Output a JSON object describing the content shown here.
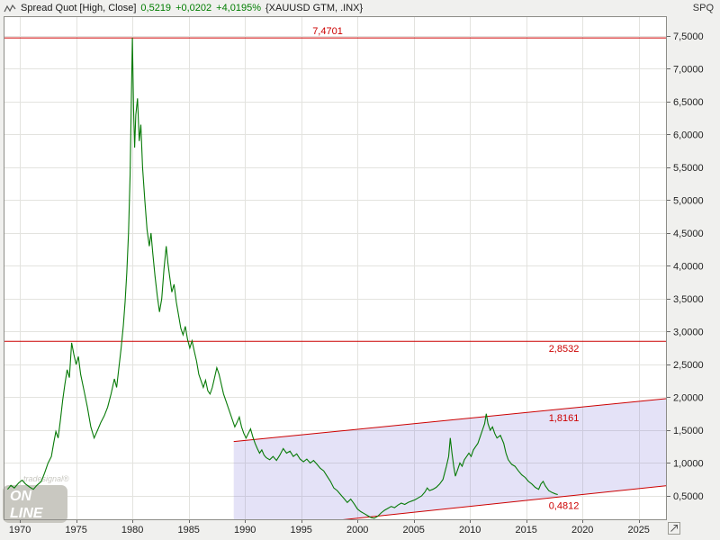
{
  "topbar": {
    "title": "Spread Quot [High, Close]",
    "value": "0,5219",
    "change_abs": "+0,0202",
    "change_pct": "+4,0195%",
    "symbol": "{XAUUSD GTM, .INX}",
    "axis_code": "SPQ"
  },
  "watermark": {
    "brand": "tradesignal®",
    "line1": "ON",
    "line2": "LINE"
  },
  "colors": {
    "series": "#077a07",
    "red": "#cc0000",
    "channel_fill": "rgba(122,110,215,0.20)",
    "grid": "#e3e3df",
    "frame": "#8d8d88",
    "plot_bg": "#ffffff",
    "bg": "#f0f0ee",
    "watermark": "#c9c8c1",
    "axis_text": "#222222",
    "change_text": "#007d00"
  },
  "chart_data": {
    "type": "line",
    "title": "Spread Quot [High, Close] {XAUUSD GTM, .INX}",
    "x_range": [
      1968.55,
      2027.5
    ],
    "y_range": [
      0.13,
      7.8
    ],
    "x_ticks": [
      1970,
      1975,
      1980,
      1985,
      1990,
      1995,
      2000,
      2005,
      2010,
      2015,
      2020,
      2025
    ],
    "x_tick_labels": [
      "1970",
      "1975",
      "1980",
      "1985",
      "1990",
      "1995",
      "2000",
      "2005",
      "2010",
      "2015",
      "2020",
      "2025"
    ],
    "y_ticks": [
      0.5,
      1.0,
      1.5,
      2.0,
      2.5,
      3.0,
      3.5,
      4.0,
      4.5,
      5.0,
      5.5,
      6.0,
      6.5,
      7.0,
      7.5
    ],
    "y_tick_labels": [
      "0,5000",
      "1,0000",
      "1,5000",
      "2,0000",
      "2,5000",
      "3,0000",
      "3,5000",
      "4,0000",
      "4,5000",
      "5,0000",
      "5,5000",
      "6,0000",
      "6,5000",
      "7,0000",
      "7,5000"
    ],
    "grid": true,
    "hlines": [
      {
        "value": 7.4701,
        "label": "7,4701",
        "label_year": 1996.0,
        "label_side": "above"
      },
      {
        "value": 2.8532,
        "label": "2,8532",
        "label_year": 2017.0,
        "label_side": "below"
      }
    ],
    "trendlines": [
      {
        "name": "upper",
        "value_at": 1.8161,
        "at_year": 2017.8,
        "slope_per_year": 0.017,
        "from_year": 1989,
        "to_year": 2027.5,
        "label": "1,8161",
        "label_year": 2017.0,
        "label_side": "below"
      },
      {
        "name": "lower",
        "value_at": 0.4812,
        "at_year": 2017.8,
        "slope_per_year": 0.018,
        "from_year": 1989,
        "to_year": 2027.5,
        "label": "0,4812",
        "label_year": 2017.0,
        "label_side": "below"
      }
    ],
    "channel": {
      "from_year": 1989,
      "to_year": 2027.5
    },
    "series": {
      "name": "Spread Quot",
      "last_value": 0.5219,
      "points": [
        [
          1968.9,
          0.6
        ],
        [
          1969.2,
          0.66
        ],
        [
          1969.5,
          0.62
        ],
        [
          1969.9,
          0.7
        ],
        [
          1970.2,
          0.74
        ],
        [
          1970.5,
          0.68
        ],
        [
          1970.9,
          0.63
        ],
        [
          1971.2,
          0.6
        ],
        [
          1971.5,
          0.66
        ],
        [
          1971.9,
          0.72
        ],
        [
          1972.2,
          0.85
        ],
        [
          1972.5,
          1.0
        ],
        [
          1972.8,
          1.1
        ],
        [
          1973.0,
          1.3
        ],
        [
          1973.2,
          1.48
        ],
        [
          1973.4,
          1.38
        ],
        [
          1973.6,
          1.65
        ],
        [
          1973.8,
          1.95
        ],
        [
          1974.0,
          2.2
        ],
        [
          1974.2,
          2.42
        ],
        [
          1974.4,
          2.3
        ],
        [
          1974.6,
          2.83
        ],
        [
          1974.8,
          2.65
        ],
        [
          1975.0,
          2.5
        ],
        [
          1975.2,
          2.62
        ],
        [
          1975.4,
          2.35
        ],
        [
          1975.7,
          2.1
        ],
        [
          1976.0,
          1.85
        ],
        [
          1976.3,
          1.55
        ],
        [
          1976.6,
          1.38
        ],
        [
          1976.9,
          1.5
        ],
        [
          1977.2,
          1.62
        ],
        [
          1977.5,
          1.72
        ],
        [
          1977.8,
          1.85
        ],
        [
          1978.1,
          2.05
        ],
        [
          1978.4,
          2.28
        ],
        [
          1978.6,
          2.15
        ],
        [
          1978.8,
          2.45
        ],
        [
          1979.0,
          2.75
        ],
        [
          1979.2,
          3.1
        ],
        [
          1979.35,
          3.45
        ],
        [
          1979.5,
          3.9
        ],
        [
          1979.65,
          4.5
        ],
        [
          1979.8,
          5.4
        ],
        [
          1979.9,
          6.5
        ],
        [
          1980.0,
          7.47
        ],
        [
          1980.1,
          6.4
        ],
        [
          1980.2,
          5.8
        ],
        [
          1980.3,
          6.3
        ],
        [
          1980.45,
          6.55
        ],
        [
          1980.6,
          5.9
        ],
        [
          1980.75,
          6.15
        ],
        [
          1980.9,
          5.5
        ],
        [
          1981.1,
          5.0
        ],
        [
          1981.3,
          4.55
        ],
        [
          1981.5,
          4.3
        ],
        [
          1981.65,
          4.5
        ],
        [
          1981.8,
          4.2
        ],
        [
          1982.0,
          3.85
        ],
        [
          1982.2,
          3.55
        ],
        [
          1982.4,
          3.3
        ],
        [
          1982.6,
          3.5
        ],
        [
          1982.8,
          3.95
        ],
        [
          1983.0,
          4.3
        ],
        [
          1983.15,
          4.05
        ],
        [
          1983.3,
          3.85
        ],
        [
          1983.5,
          3.6
        ],
        [
          1983.7,
          3.72
        ],
        [
          1983.9,
          3.45
        ],
        [
          1984.1,
          3.25
        ],
        [
          1984.3,
          3.05
        ],
        [
          1984.5,
          2.95
        ],
        [
          1984.7,
          3.08
        ],
        [
          1984.9,
          2.88
        ],
        [
          1985.1,
          2.75
        ],
        [
          1985.3,
          2.86
        ],
        [
          1985.5,
          2.7
        ],
        [
          1985.7,
          2.55
        ],
        [
          1985.9,
          2.35
        ],
        [
          1986.1,
          2.25
        ],
        [
          1986.3,
          2.15
        ],
        [
          1986.5,
          2.26
        ],
        [
          1986.7,
          2.1
        ],
        [
          1986.9,
          2.05
        ],
        [
          1987.1,
          2.15
        ],
        [
          1987.3,
          2.3
        ],
        [
          1987.5,
          2.45
        ],
        [
          1987.7,
          2.35
        ],
        [
          1987.9,
          2.2
        ],
        [
          1988.1,
          2.05
        ],
        [
          1988.3,
          1.95
        ],
        [
          1988.5,
          1.85
        ],
        [
          1988.7,
          1.75
        ],
        [
          1988.9,
          1.65
        ],
        [
          1989.1,
          1.55
        ],
        [
          1989.3,
          1.62
        ],
        [
          1989.5,
          1.7
        ],
        [
          1989.7,
          1.55
        ],
        [
          1989.9,
          1.45
        ],
        [
          1990.1,
          1.38
        ],
        [
          1990.3,
          1.45
        ],
        [
          1990.5,
          1.52
        ],
        [
          1990.7,
          1.4
        ],
        [
          1990.9,
          1.3
        ],
        [
          1991.1,
          1.22
        ],
        [
          1991.3,
          1.15
        ],
        [
          1991.5,
          1.2
        ],
        [
          1991.7,
          1.12
        ],
        [
          1991.9,
          1.08
        ],
        [
          1992.2,
          1.05
        ],
        [
          1992.5,
          1.1
        ],
        [
          1992.8,
          1.04
        ],
        [
          1993.1,
          1.12
        ],
        [
          1993.4,
          1.22
        ],
        [
          1993.7,
          1.15
        ],
        [
          1994.0,
          1.18
        ],
        [
          1994.3,
          1.1
        ],
        [
          1994.6,
          1.14
        ],
        [
          1994.9,
          1.06
        ],
        [
          1995.2,
          1.02
        ],
        [
          1995.5,
          1.06
        ],
        [
          1995.8,
          1.0
        ],
        [
          1996.1,
          1.04
        ],
        [
          1996.4,
          0.98
        ],
        [
          1996.7,
          0.92
        ],
        [
          1997.0,
          0.88
        ],
        [
          1997.3,
          0.8
        ],
        [
          1997.6,
          0.72
        ],
        [
          1997.9,
          0.62
        ],
        [
          1998.2,
          0.58
        ],
        [
          1998.5,
          0.52
        ],
        [
          1998.8,
          0.46
        ],
        [
          1999.1,
          0.4
        ],
        [
          1999.4,
          0.45
        ],
        [
          1999.7,
          0.38
        ],
        [
          2000.0,
          0.3
        ],
        [
          2000.3,
          0.26
        ],
        [
          2000.6,
          0.23
        ],
        [
          2000.9,
          0.2
        ],
        [
          2001.2,
          0.17
        ],
        [
          2001.5,
          0.16
        ],
        [
          2001.8,
          0.19
        ],
        [
          2002.1,
          0.24
        ],
        [
          2002.4,
          0.28
        ],
        [
          2002.7,
          0.31
        ],
        [
          2003.0,
          0.34
        ],
        [
          2003.3,
          0.32
        ],
        [
          2003.6,
          0.36
        ],
        [
          2003.9,
          0.39
        ],
        [
          2004.2,
          0.37
        ],
        [
          2004.5,
          0.4
        ],
        [
          2004.8,
          0.42
        ],
        [
          2005.1,
          0.44
        ],
        [
          2005.4,
          0.47
        ],
        [
          2005.7,
          0.5
        ],
        [
          2006.0,
          0.56
        ],
        [
          2006.2,
          0.62
        ],
        [
          2006.4,
          0.58
        ],
        [
          2006.7,
          0.6
        ],
        [
          2007.0,
          0.63
        ],
        [
          2007.3,
          0.68
        ],
        [
          2007.6,
          0.75
        ],
        [
          2007.9,
          0.95
        ],
        [
          2008.1,
          1.1
        ],
        [
          2008.25,
          1.38
        ],
        [
          2008.4,
          1.15
        ],
        [
          2008.55,
          0.95
        ],
        [
          2008.7,
          0.8
        ],
        [
          2008.9,
          0.9
        ],
        [
          2009.1,
          1.0
        ],
        [
          2009.3,
          0.95
        ],
        [
          2009.5,
          1.05
        ],
        [
          2009.7,
          1.1
        ],
        [
          2009.9,
          1.15
        ],
        [
          2010.1,
          1.1
        ],
        [
          2010.3,
          1.2
        ],
        [
          2010.5,
          1.25
        ],
        [
          2010.7,
          1.3
        ],
        [
          2010.9,
          1.4
        ],
        [
          2011.1,
          1.5
        ],
        [
          2011.3,
          1.6
        ],
        [
          2011.45,
          1.75
        ],
        [
          2011.6,
          1.6
        ],
        [
          2011.8,
          1.5
        ],
        [
          2012.0,
          1.55
        ],
        [
          2012.2,
          1.45
        ],
        [
          2012.4,
          1.38
        ],
        [
          2012.7,
          1.42
        ],
        [
          2013.0,
          1.3
        ],
        [
          2013.2,
          1.15
        ],
        [
          2013.4,
          1.05
        ],
        [
          2013.7,
          0.98
        ],
        [
          2014.0,
          0.95
        ],
        [
          2014.3,
          0.88
        ],
        [
          2014.6,
          0.82
        ],
        [
          2014.9,
          0.78
        ],
        [
          2015.2,
          0.72
        ],
        [
          2015.5,
          0.68
        ],
        [
          2015.8,
          0.63
        ],
        [
          2016.1,
          0.6
        ],
        [
          2016.3,
          0.68
        ],
        [
          2016.5,
          0.72
        ],
        [
          2016.7,
          0.65
        ],
        [
          2017.0,
          0.58
        ],
        [
          2017.3,
          0.55
        ],
        [
          2017.6,
          0.53
        ],
        [
          2017.8,
          0.52
        ]
      ]
    }
  }
}
